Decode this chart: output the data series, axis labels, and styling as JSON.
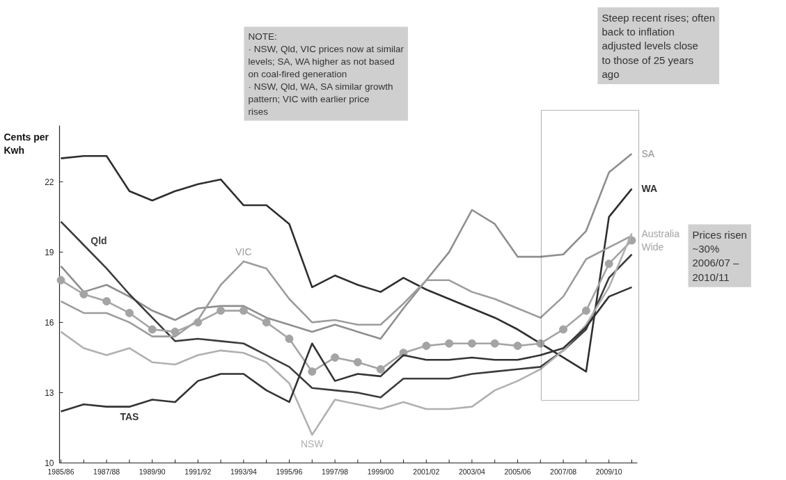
{
  "chart_data": {
    "type": "line",
    "ylabel": "Cents per Kwh",
    "categories": [
      "1985/86",
      null,
      "1987/88",
      null,
      "1989/90",
      null,
      "1991/92",
      null,
      "1993/94",
      null,
      "1995/96",
      null,
      "1997/98",
      null,
      "1999/00",
      null,
      "2001/02",
      null,
      "2003/04",
      null,
      "2005/06",
      null,
      "2007/08",
      null,
      "2009/10",
      null
    ],
    "ylim": [
      10,
      24.4
    ],
    "yticks": [
      10,
      13,
      16,
      19,
      22
    ],
    "grid": false,
    "marker": "none",
    "line_style": "solid",
    "series": [
      {
        "name": "WA",
        "color": "#2e2e2e",
        "values": [
          23.0,
          23.1,
          23.1,
          21.6,
          21.2,
          21.6,
          21.9,
          22.1,
          21.0,
          21.0,
          20.2,
          17.5,
          18.0,
          17.6,
          17.3,
          17.9,
          17.4,
          17.0,
          16.6,
          16.2,
          15.7,
          15.1,
          14.5,
          13.9,
          20.5,
          21.7
        ]
      },
      {
        "name": "SA",
        "color": "#8e8e8e",
        "values": [
          18.4,
          17.3,
          17.6,
          17.1,
          16.5,
          16.1,
          16.6,
          16.7,
          16.7,
          16.2,
          15.9,
          15.6,
          15.9,
          15.6,
          15.3,
          16.6,
          17.8,
          19.0,
          20.8,
          20.2,
          18.8,
          18.8,
          18.9,
          19.9,
          22.4,
          23.2
        ]
      },
      {
        "name": "Qld",
        "color": "#3c3c3c",
        "values": [
          20.3,
          19.3,
          18.3,
          17.2,
          16.2,
          15.2,
          15.3,
          15.2,
          15.1,
          14.6,
          14.1,
          13.2,
          13.1,
          13.0,
          12.8,
          13.6,
          13.6,
          13.6,
          13.8,
          13.9,
          14.0,
          14.1,
          14.8,
          15.7,
          17.9,
          18.9
        ]
      },
      {
        "name": "VIC",
        "color": "#9c9c9c",
        "values": [
          16.9,
          16.4,
          16.4,
          16.0,
          15.4,
          15.4,
          16.1,
          17.6,
          18.6,
          18.3,
          17.0,
          16.0,
          16.1,
          15.9,
          15.9,
          16.8,
          17.8,
          17.8,
          17.3,
          17.0,
          16.6,
          16.2,
          17.1,
          18.7,
          19.2,
          19.7
        ]
      },
      {
        "name": "Australia Wide",
        "color": "#a4a4a4",
        "marker": "circle",
        "values": [
          17.8,
          17.2,
          16.9,
          16.4,
          15.7,
          15.6,
          16.0,
          16.5,
          16.5,
          16.0,
          15.3,
          13.9,
          14.5,
          14.3,
          14.0,
          14.7,
          15.0,
          15.1,
          15.1,
          15.1,
          15.0,
          15.1,
          15.7,
          16.5,
          18.5,
          19.5
        ]
      },
      {
        "name": "NSW",
        "color": "#b0b0b0",
        "values": [
          15.6,
          14.9,
          14.6,
          14.9,
          14.3,
          14.2,
          14.6,
          14.8,
          14.7,
          14.3,
          13.4,
          11.2,
          12.7,
          12.5,
          12.3,
          12.6,
          12.3,
          12.3,
          12.4,
          13.1,
          13.5,
          14.0,
          14.8,
          15.9,
          17.5,
          19.8
        ]
      },
      {
        "name": "TAS",
        "color": "#333333",
        "values": [
          12.2,
          12.5,
          12.4,
          12.4,
          12.7,
          12.6,
          13.5,
          13.8,
          13.8,
          13.1,
          12.6,
          15.1,
          13.5,
          13.8,
          13.7,
          14.6,
          14.4,
          14.4,
          14.5,
          14.4,
          14.4,
          14.6,
          14.9,
          15.8,
          17.1,
          17.5
        ]
      }
    ],
    "annotations": [
      "NOTE:\n· NSW, Qld, VIC prices now at similar levels; SA, WA higher as not based on coal-fired generation\n· NSW, Qld, WA, SA similar growth pattern; VIC with earlier price rises",
      "Steep recent rises; often back to inflation adjusted levels close to those of 25 years ago",
      "Prices risen ~30% 2006/07 – 2010/11"
    ]
  }
}
